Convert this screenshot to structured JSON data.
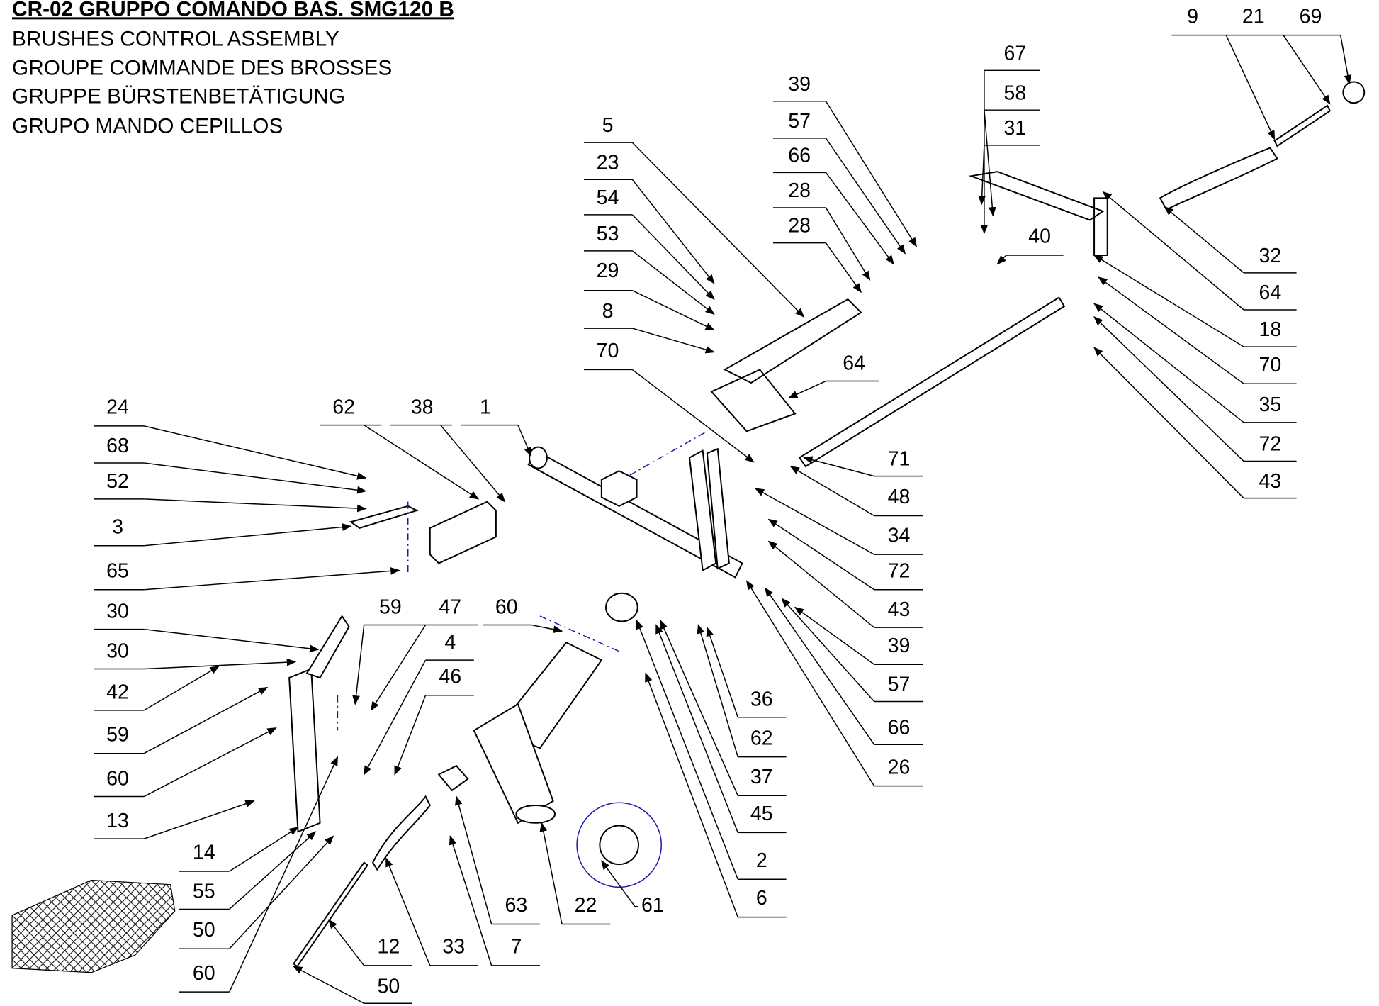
{
  "header": {
    "title": "CR-02 GRUPPO COMANDO BAS. SMG120 B",
    "subtitles": [
      "BRUSHES CONTROL ASSEMBLY",
      "GROUPE COMMANDE DES BROSSES",
      "GRUPPE BÜRSTENBETÄTIGUNG",
      "GRUPO MANDO CEPILLOS"
    ]
  },
  "callouts": [
    "9",
    "21",
    "69",
    "32",
    "64",
    "18",
    "70",
    "35",
    "72",
    "43",
    "67",
    "58",
    "31",
    "40",
    "39",
    "57",
    "66",
    "28",
    "28",
    "5",
    "23",
    "54",
    "53",
    "29",
    "8",
    "70",
    "64",
    "71",
    "48",
    "34",
    "72",
    "43",
    "39",
    "57",
    "66",
    "26",
    "36",
    "62",
    "37",
    "45",
    "2",
    "6",
    "24",
    "68",
    "52",
    "3",
    "65",
    "30",
    "30",
    "42",
    "59",
    "60",
    "13",
    "62",
    "38",
    "1",
    "59",
    "47",
    "4",
    "46",
    "60",
    "14",
    "55",
    "50",
    "60",
    "12",
    "33",
    "7",
    "63",
    "22",
    "61",
    "50"
  ]
}
